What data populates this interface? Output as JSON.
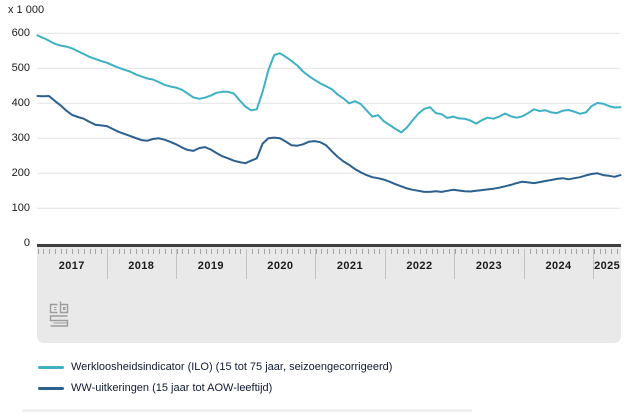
{
  "chart_data": {
    "type": "line",
    "title": "",
    "unit": "x 1 000",
    "xlabel": "",
    "ylabel": "x 1 000",
    "x_interval": "month",
    "x_start": "2017-01",
    "x_end": "2025-06",
    "ylim": [
      0,
      650
    ],
    "grid": true,
    "legend_position": "bottom",
    "y_tick_values": [
      600,
      500,
      400,
      300,
      200,
      100,
      0
    ],
    "y_tick_labels": [
      "600",
      "500",
      "400",
      "300",
      "200",
      "100",
      "0"
    ],
    "x_tick_labels": [
      "2017",
      "2018",
      "2019",
      "2020",
      "2021",
      "2022",
      "2023",
      "2024",
      "2025"
    ],
    "series": [
      {
        "name": "Werkloosheidsindicator (ILO) (15 tot 75 jaar, seizoengecorrigeerd)",
        "color": "#3fb1c5",
        "values": [
          594,
          587,
          579,
          570,
          565,
          562,
          557,
          549,
          541,
          533,
          527,
          521,
          516,
          509,
          502,
          496,
          491,
          483,
          477,
          471,
          468,
          461,
          453,
          448,
          445,
          439,
          428,
          417,
          413,
          416,
          422,
          430,
          433,
          433,
          428,
          409,
          391,
          380,
          383,
          433,
          495,
          538,
          543,
          533,
          521,
          508,
          491,
          478,
          467,
          457,
          449,
          440,
          425,
          414,
          400,
          406,
          398,
          380,
          362,
          366,
          349,
          338,
          327,
          317,
          331,
          352,
          371,
          384,
          389,
          372,
          369,
          358,
          362,
          357,
          356,
          351,
          342,
          352,
          359,
          356,
          362,
          371,
          363,
          359,
          363,
          372,
          383,
          378,
          380,
          374,
          372,
          379,
          381,
          376,
          370,
          374,
          392,
          401,
          399,
          392,
          388,
          389
        ]
      },
      {
        "name": "WW-uitkeringen (15 jaar tot AOW-leeftijd)",
        "color": "#2b608f",
        "values": [
          421,
          420,
          421,
          407,
          394,
          379,
          367,
          361,
          356,
          347,
          339,
          337,
          335,
          327,
          319,
          313,
          307,
          301,
          295,
          293,
          298,
          300,
          296,
          290,
          283,
          274,
          267,
          264,
          272,
          275,
          268,
          258,
          249,
          243,
          236,
          232,
          229,
          236,
          243,
          285,
          300,
          302,
          300,
          291,
          280,
          279,
          283,
          290,
          292,
          289,
          280,
          263,
          247,
          234,
          224,
          212,
          203,
          195,
          189,
          186,
          182,
          176,
          169,
          163,
          157,
          153,
          150,
          147,
          147,
          149,
          147,
          150,
          153,
          151,
          149,
          148,
          150,
          152,
          154,
          156,
          159,
          163,
          167,
          172,
          176,
          174,
          172,
          175,
          178,
          181,
          184,
          186,
          183,
          186,
          189,
          194,
          198,
          200,
          195,
          193,
          190,
          195
        ]
      }
    ]
  },
  "branding": {
    "logo": "cbs-logo"
  },
  "colors": {
    "gridline": "#e3e3e3",
    "axis_band_background": "#e9e9e9",
    "zero_axis_bar": "#3f3f3f",
    "series_1": "#3fb1c5",
    "series_2": "#2b608f"
  }
}
